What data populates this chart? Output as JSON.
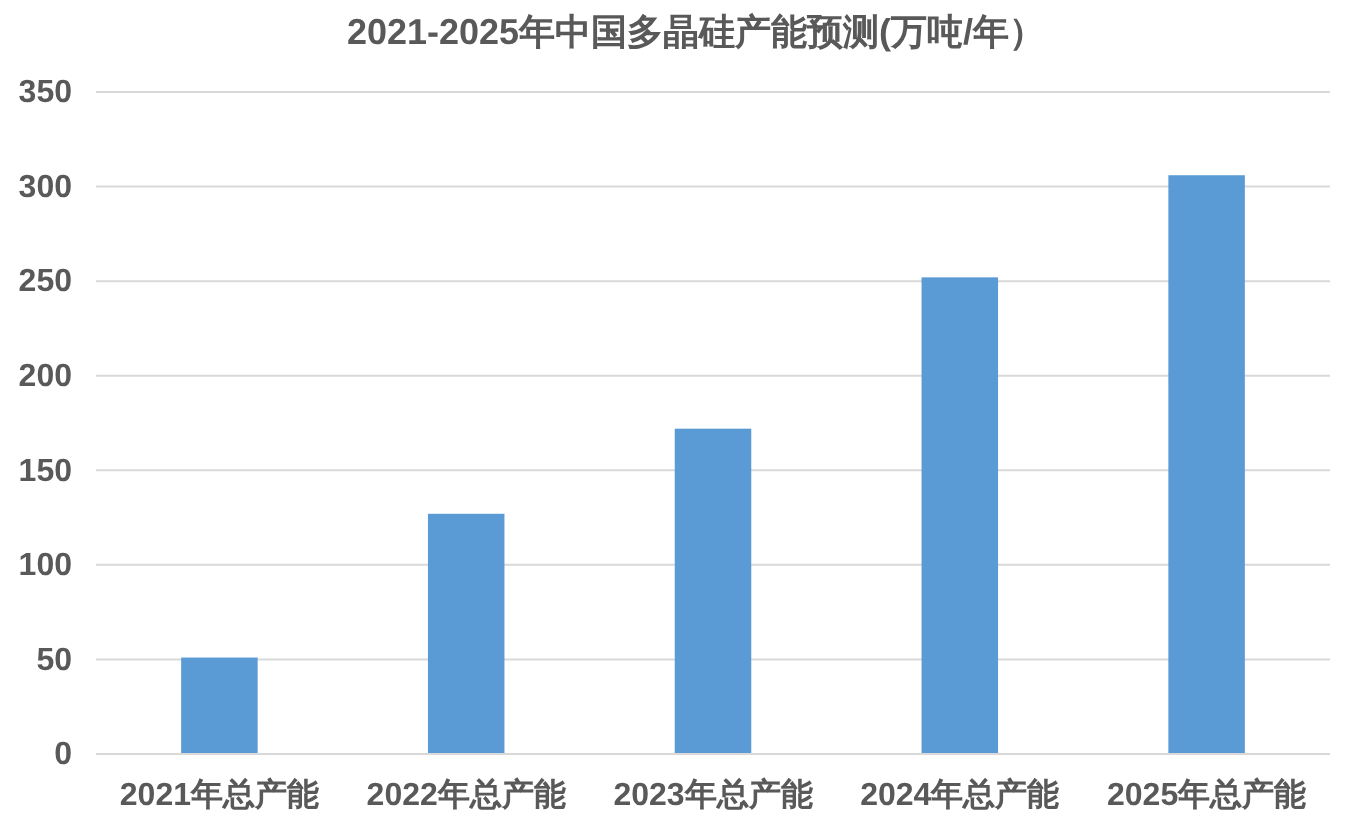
{
  "chart_data": {
    "type": "bar",
    "title": "2021-2025年中国多晶硅产能预测(万吨/年）",
    "categories": [
      "2021年总产能",
      "2022年总产能",
      "2023年总产能",
      "2024年总产能",
      "2025年总产能"
    ],
    "values": [
      51,
      127,
      172,
      252,
      306
    ],
    "color": "#5b9bd5",
    "ylim": [
      0,
      350
    ],
    "yticks": [
      0,
      50,
      100,
      150,
      200,
      250,
      300,
      350
    ],
    "grid": "y"
  }
}
